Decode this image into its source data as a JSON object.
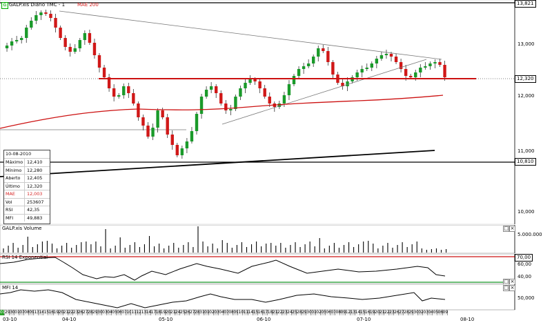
{
  "instrument": {
    "title": "GALP.xis Diário TMC - 1",
    "mae_label": "MAE 200"
  },
  "price_axis": {
    "top_label": "13,821",
    "ticks": [
      "13,000",
      "12,000",
      "11,000",
      "10,000"
    ],
    "last_label": "12,320",
    "low_label": "10,810"
  },
  "infobox": {
    "date": "10-08-2010",
    "rows": [
      {
        "k": "Máximo",
        "v": "12,410",
        "red": false
      },
      {
        "k": "Mínimo",
        "v": "12,280",
        "red": false
      },
      {
        "k": "Aberto",
        "v": "12,405",
        "red": false
      },
      {
        "k": "Último",
        "v": "12,320",
        "red": false
      },
      {
        "k": "MAE",
        "v": "12,003",
        "red": true
      },
      {
        "k": "Vol",
        "v": "253607",
        "red": false
      },
      {
        "k": "RSI",
        "v": "42,35",
        "red": false
      },
      {
        "k": "MFI",
        "v": "49,883",
        "red": false
      }
    ]
  },
  "volume_panel": {
    "title": "GALP.xis Volume",
    "tick": "5.000.000"
  },
  "rsi_panel": {
    "title": "RSI 14 Exponential",
    "box_label": "70,00",
    "ticks": [
      "60,00",
      "40,00"
    ]
  },
  "mfi_panel": {
    "title": "MFI 14",
    "tick": "50,000"
  },
  "colors": {
    "candle_up": "#1a9a2a",
    "candle_down": "#d01818",
    "mae": "#cc1010",
    "support": "#cc1010"
  },
  "date_axis": {
    "days": [
      "010",
      "29",
      "30",
      "01",
      "07",
      "08",
      "09",
      "13",
      "14",
      "15",
      "16",
      "19",
      "20",
      "21",
      "22",
      "23",
      "26",
      "27",
      "28",
      "29",
      "30",
      "03",
      "04",
      "05",
      "06",
      "07",
      "10",
      "11",
      "12",
      "13",
      "14",
      "17",
      "18",
      "19",
      "20",
      "21",
      "24",
      "25",
      "26",
      "27",
      "28",
      "31",
      "01",
      "02",
      "03",
      "04",
      "07",
      "08",
      "09",
      "10",
      "11",
      "14",
      "15",
      "16",
      "17",
      "18",
      "21",
      "22",
      "23",
      "24",
      "25",
      "28",
      "29",
      "30",
      "01",
      "02",
      "05",
      "06",
      "07",
      "08",
      "09",
      "12",
      "13",
      "14",
      "15",
      "16",
      "19",
      "20",
      "21",
      "22",
      "23",
      "26",
      "27",
      "28",
      "29",
      "30",
      "02",
      "03",
      "04",
      "05",
      "06",
      "09"
    ],
    "months": [
      "03-10",
      "04-10",
      "05-10",
      "06-10",
      "07-10",
      "08-10"
    ]
  }
}
